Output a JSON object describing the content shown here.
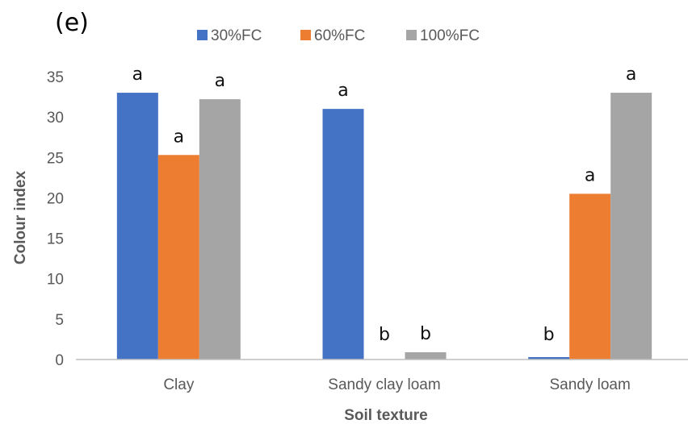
{
  "panel_label": "(e)",
  "chart_data": {
    "type": "bar",
    "title": "",
    "xlabel": "Soil texture",
    "ylabel": "Colour index",
    "ylim": [
      0,
      35
    ],
    "yticks": [
      0,
      5,
      10,
      15,
      20,
      25,
      30,
      35
    ],
    "grid": false,
    "legend_position": "top",
    "categories": [
      "Clay",
      "Sandy clay loam",
      "Sandy loam"
    ],
    "series": [
      {
        "name": "30%FC",
        "color": "#4472C4",
        "values": [
          33.0,
          31.0,
          0.3
        ],
        "letters": [
          "a",
          "a",
          "b"
        ]
      },
      {
        "name": "60%FC",
        "color": "#ED7D31",
        "values": [
          25.3,
          0.0,
          20.5
        ],
        "letters": [
          "a",
          "b",
          "a"
        ]
      },
      {
        "name": "100%FC",
        "color": "#A5A5A5",
        "values": [
          32.2,
          0.9,
          33.0
        ],
        "letters": [
          "a",
          "b",
          "a"
        ]
      }
    ]
  }
}
